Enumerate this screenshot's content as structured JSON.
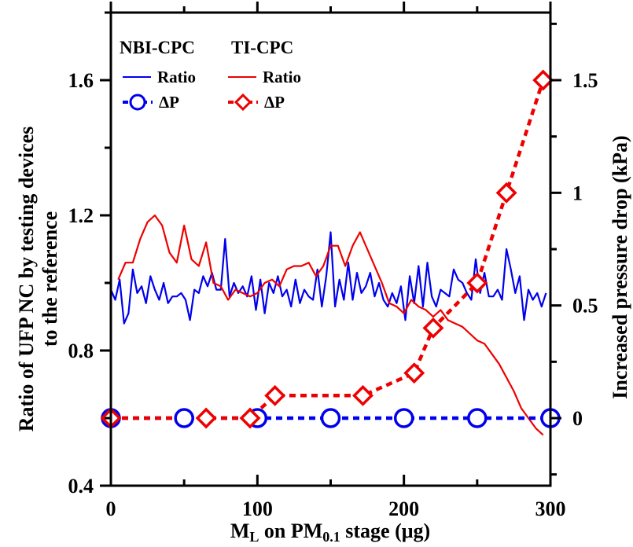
{
  "chart_data": {
    "type": "line",
    "xlabel_main": "M",
    "xlabel_sub1": "L",
    "xlabel_mid": " on PM",
    "xlabel_sub2": "0.1",
    "xlabel_tail": " stage (μg)",
    "ylabel_left_line1": "Ratio of UFP NC by testing devices",
    "ylabel_left_line2": "to the reference",
    "ylabel_right": "Increased pressure drop (kPa)",
    "xlim": [
      0,
      300
    ],
    "ylim_left": [
      0.4,
      1.8
    ],
    "ylim_right": [
      -0.3,
      1.8
    ],
    "x_ticks": [
      0,
      100,
      200,
      300
    ],
    "y_left_ticks": [
      0.4,
      0.8,
      1.2,
      1.6
    ],
    "y_left_tick_labels": [
      "0.4",
      "0.8",
      "1.2",
      "1.6"
    ],
    "y_right_ticks": [
      0,
      0.5,
      1,
      1.5
    ],
    "y_right_tick_labels": [
      "0",
      "0.5",
      "1",
      "1.5"
    ],
    "legend": {
      "group1": "NBI-CPC",
      "group2": "TI-CPC",
      "ratio_label": "Ratio",
      "dp_label": "ΔP",
      "placement": "top-left"
    },
    "colors": {
      "nbi": "#0000ee",
      "ti": "#ee0000"
    },
    "series": [
      {
        "name": "NBI-CPC Ratio",
        "axis": "left",
        "style": "solid",
        "x": [
          0,
          3,
          6,
          9,
          12,
          15,
          18,
          21,
          24,
          27,
          30,
          33,
          36,
          39,
          42,
          45,
          48,
          51,
          54,
          57,
          60,
          63,
          66,
          69,
          72,
          75,
          78,
          81,
          84,
          87,
          90,
          93,
          96,
          99,
          102,
          105,
          108,
          111,
          114,
          117,
          120,
          123,
          126,
          129,
          132,
          135,
          138,
          141,
          144,
          147,
          150,
          153,
          156,
          159,
          162,
          165,
          168,
          171,
          174,
          177,
          180,
          183,
          186,
          189,
          192,
          195,
          198,
          201,
          204,
          207,
          210,
          213,
          216,
          219,
          222,
          225,
          228,
          231,
          234,
          237,
          240,
          243,
          246,
          249,
          252,
          255,
          258,
          261,
          264,
          267,
          270,
          273,
          276,
          279,
          282,
          285,
          288,
          291,
          294,
          297
        ],
        "y": [
          0.98,
          0.95,
          1.01,
          0.88,
          0.91,
          1.04,
          0.97,
          0.99,
          0.94,
          1.02,
          0.98,
          0.95,
          1.0,
          0.94,
          0.96,
          0.96,
          0.97,
          0.95,
          0.89,
          0.98,
          0.97,
          1.02,
          0.99,
          1.03,
          0.98,
          0.98,
          1.13,
          0.96,
          1.0,
          0.97,
          0.99,
          0.96,
          1.02,
          0.92,
          1.01,
          0.91,
          1.0,
          0.97,
          1.02,
          0.96,
          0.98,
          0.93,
          1.01,
          0.94,
          0.98,
          0.96,
          0.95,
          1.04,
          0.93,
          1.02,
          1.15,
          0.93,
          1.01,
          0.95,
          1.06,
          0.95,
          1.03,
          0.97,
          0.99,
          1.03,
          0.96,
          1.0,
          0.95,
          0.93,
          0.97,
          0.94,
          0.99,
          0.89,
          1.02,
          0.94,
          1.05,
          0.93,
          1.06,
          0.96,
          0.93,
          0.98,
          0.97,
          0.96,
          1.04,
          1.01,
          1.0,
          0.97,
          0.95,
          1.07,
          0.97,
          1.03,
          0.96,
          0.96,
          0.98,
          0.95,
          1.1,
          1.04,
          0.97,
          1.02,
          0.89,
          0.98,
          0.95,
          0.97,
          0.93,
          0.97
        ]
      },
      {
        "name": "TI-CPC Ratio",
        "axis": "left",
        "style": "solid",
        "x": [
          5,
          10,
          15,
          20,
          25,
          30,
          35,
          40,
          45,
          50,
          55,
          60,
          65,
          70,
          75,
          80,
          85,
          90,
          95,
          100,
          105,
          110,
          115,
          120,
          125,
          130,
          135,
          140,
          145,
          150,
          155,
          160,
          165,
          170,
          175,
          180,
          185,
          190,
          195,
          200,
          205,
          210,
          215,
          220,
          225,
          230,
          235,
          240,
          245,
          250,
          255,
          260,
          265,
          270,
          275,
          280,
          285,
          290,
          295
        ],
        "y": [
          1.01,
          1.06,
          1.06,
          1.13,
          1.18,
          1.2,
          1.17,
          1.09,
          1.06,
          1.17,
          1.07,
          1.05,
          1.12,
          1.0,
          0.99,
          0.95,
          0.98,
          0.97,
          0.96,
          0.97,
          1.0,
          1.01,
          0.99,
          1.04,
          1.05,
          1.05,
          1.06,
          1.02,
          1.05,
          1.11,
          1.11,
          1.05,
          1.11,
          1.15,
          1.1,
          1.05,
          1.0,
          0.94,
          0.93,
          0.91,
          0.95,
          0.93,
          0.92,
          0.9,
          0.92,
          0.89,
          0.88,
          0.87,
          0.85,
          0.83,
          0.82,
          0.79,
          0.76,
          0.72,
          0.68,
          0.63,
          0.6,
          0.57,
          0.55
        ]
      },
      {
        "name": "NBI-CPC ΔP",
        "axis": "right",
        "style": "dashed",
        "marker": "circle",
        "x": [
          0,
          50,
          100,
          150,
          200,
          250,
          300
        ],
        "y": [
          0,
          0,
          0,
          0,
          0,
          0,
          0
        ]
      },
      {
        "name": "TI-CPC ΔP",
        "axis": "right",
        "style": "dashed",
        "marker": "diamond",
        "x": [
          0,
          65,
          95,
          112,
          172,
          207,
          220,
          250,
          270,
          295
        ],
        "y": [
          0,
          0,
          0,
          0.1,
          0.1,
          0.2,
          0.4,
          0.6,
          1.0,
          1.5
        ]
      }
    ]
  }
}
